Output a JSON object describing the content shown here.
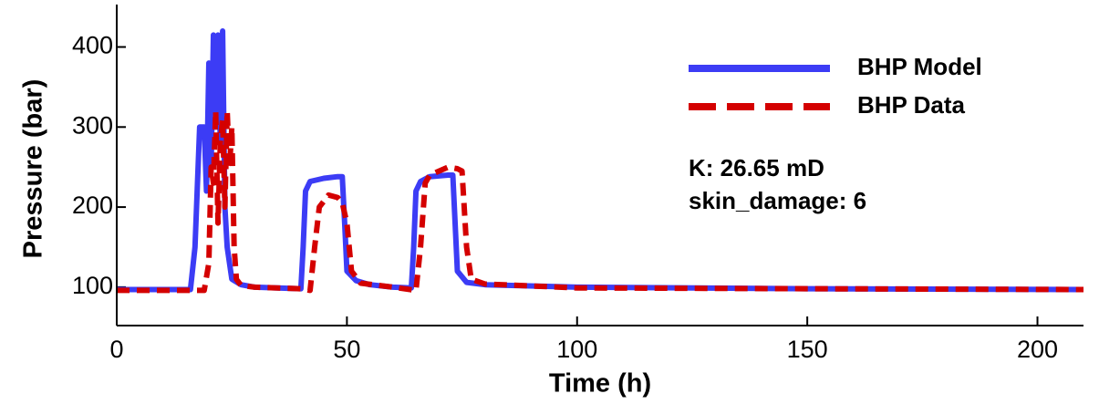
{
  "chart_data": {
    "type": "line",
    "xlabel": "Time (h)",
    "ylabel": "Pressure (bar)",
    "annotations": [
      "K: 26.65 mD",
      "skin_damage: 6"
    ],
    "xlim": [
      0,
      210
    ],
    "xticks": [
      0,
      50,
      100,
      150,
      200
    ],
    "ylim": [
      52,
      453
    ],
    "yticks": [
      100,
      200,
      300,
      400
    ],
    "legend": "upper right",
    "series": [
      {
        "name": "BHP Model",
        "color": "#3c3cf5",
        "style": "solid",
        "x": [
          0,
          16,
          17,
          18,
          19,
          19.5,
          20,
          20.5,
          21,
          21.5,
          22,
          22.5,
          23,
          23.5,
          24,
          25,
          27,
          30,
          40,
          40.5,
          41,
          42,
          45,
          48,
          49,
          49.5,
          50,
          52,
          55,
          60,
          64,
          64.5,
          65,
          66,
          68,
          72,
          73,
          73.5,
          74,
          76,
          80,
          100,
          150,
          210
        ],
        "values": [
          97,
          97,
          150,
          300,
          300,
          220,
          380,
          250,
          415,
          300,
          415,
          280,
          420,
          200,
          150,
          110,
          103,
          100,
          98,
          150,
          220,
          232,
          236,
          238,
          238,
          180,
          120,
          108,
          103,
          100,
          99,
          150,
          220,
          232,
          238,
          240,
          240,
          180,
          120,
          106,
          103,
          100,
          98,
          97
        ]
      },
      {
        "name": "BHP Data",
        "color": "#d40000",
        "style": "dashed",
        "x": [
          0,
          19,
          20,
          20.5,
          21,
          21.5,
          22,
          22.5,
          23,
          23.5,
          24,
          24.5,
          25,
          25.5,
          26,
          27,
          30,
          40,
          42,
          43,
          44,
          46,
          48,
          49,
          50,
          51,
          53,
          60,
          65,
          66,
          67,
          68,
          70,
          72,
          74,
          75,
          76,
          77,
          80,
          100,
          150,
          210
        ],
        "values": [
          96,
          96,
          130,
          250,
          230,
          320,
          180,
          280,
          310,
          200,
          320,
          250,
          300,
          150,
          110,
          102,
          100,
          98,
          96,
          150,
          200,
          215,
          212,
          205,
          180,
          120,
          105,
          100,
          96,
          150,
          230,
          240,
          245,
          250,
          248,
          245,
          150,
          110,
          104,
          99,
          98,
          97
        ]
      }
    ]
  }
}
